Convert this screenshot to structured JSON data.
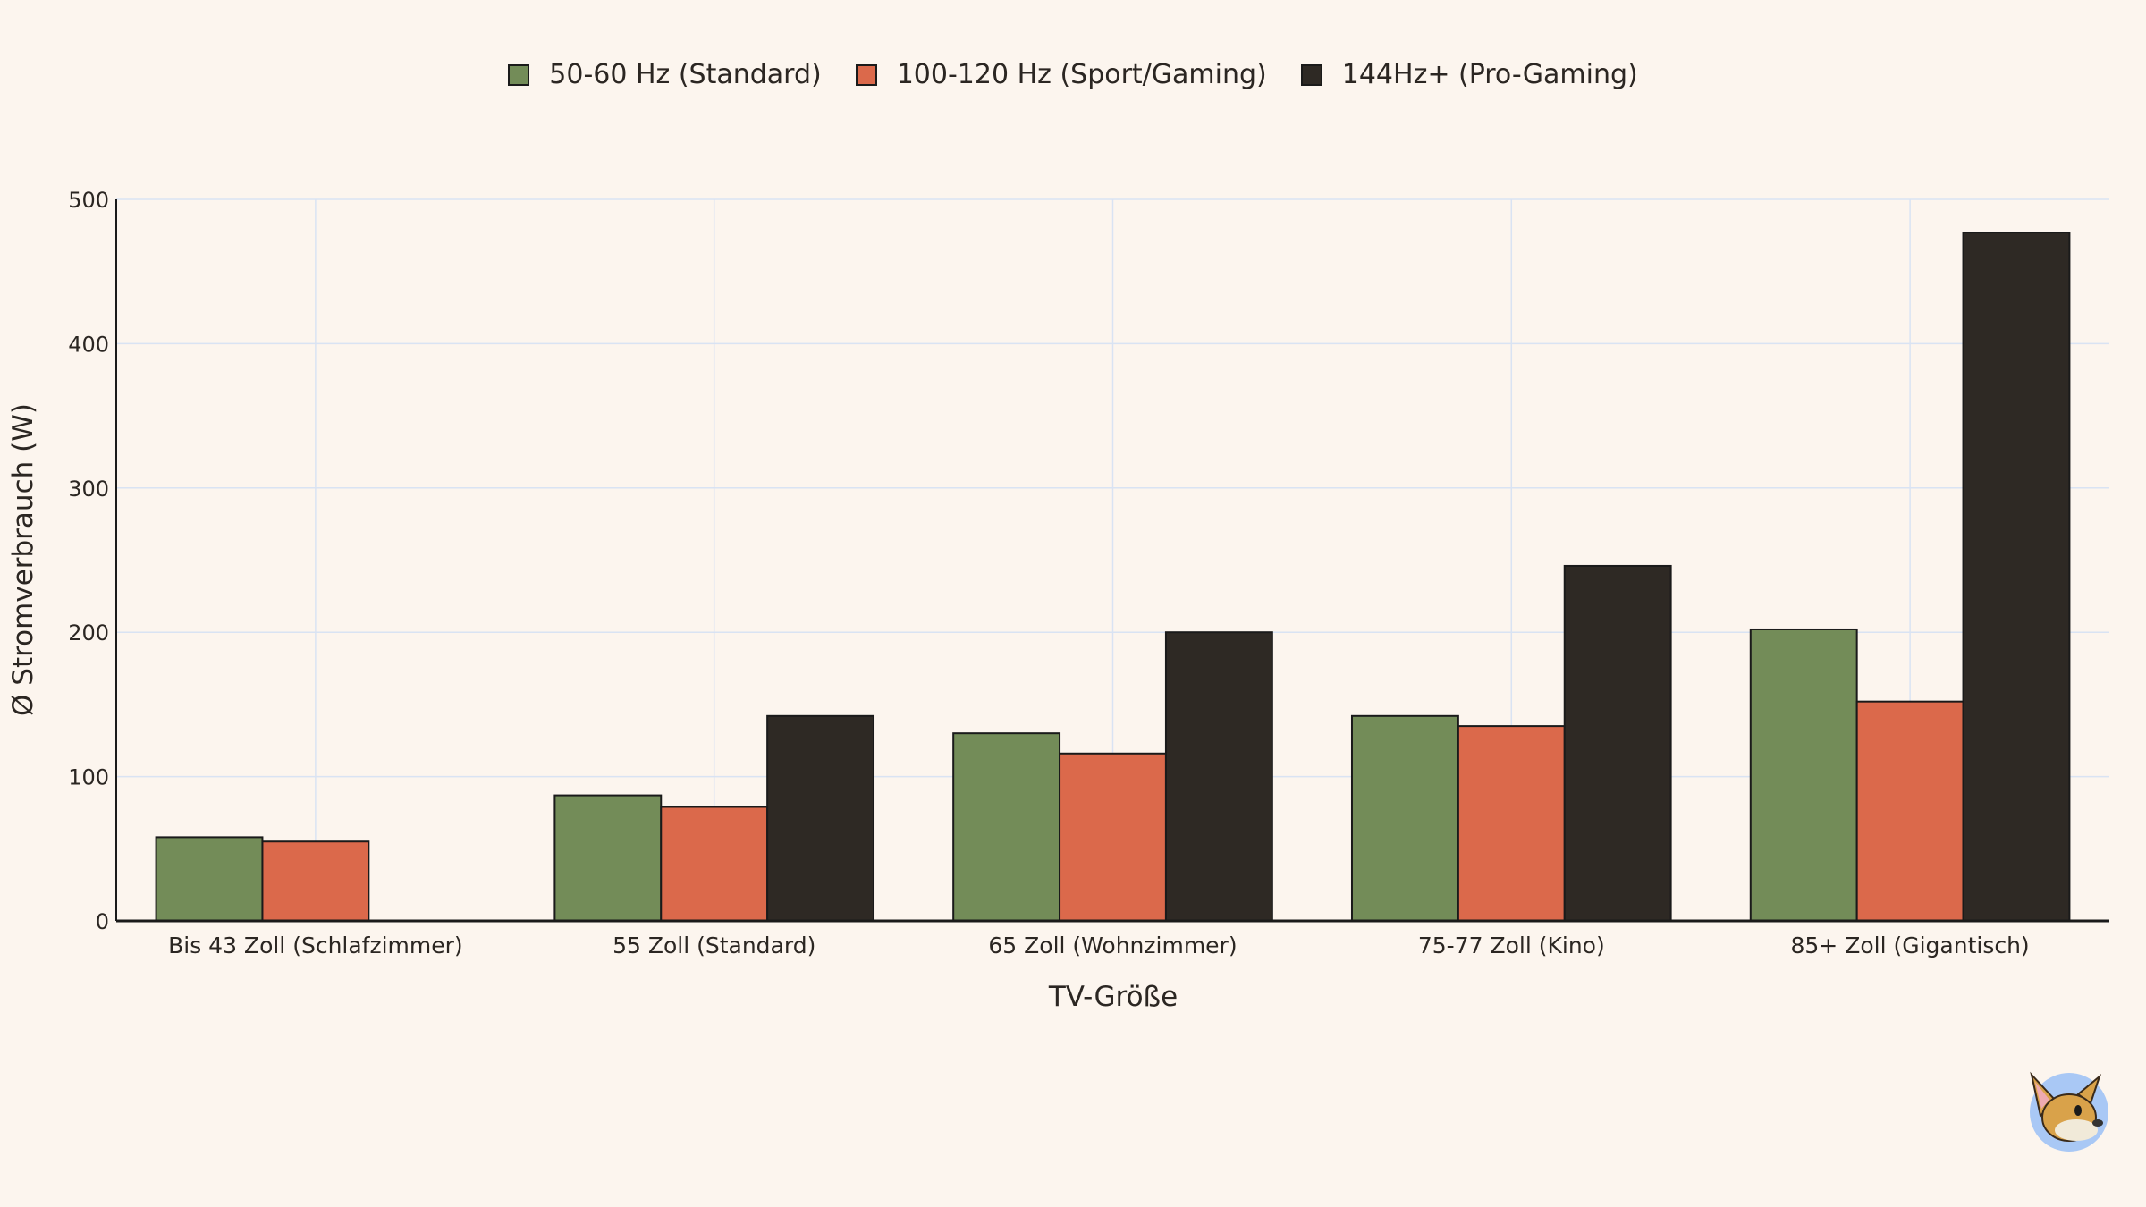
{
  "chart_data": {
    "type": "bar",
    "title": "",
    "xlabel": "TV-Größe",
    "ylabel": "Ø Stromverbrauch (W)",
    "ylim": [
      0,
      500
    ],
    "yticks": [
      "0",
      "100",
      "200",
      "300",
      "400",
      "500"
    ],
    "grid": true,
    "legend_position": "top-center",
    "categories": [
      "Bis 43 Zoll (Schlafzimmer)",
      "55 Zoll (Standard)",
      "65 Zoll (Wohnzimmer)",
      "75-77 Zoll (Kino)",
      "85+ Zoll (Gigantisch)"
    ],
    "series": [
      {
        "name": "50-60 Hz (Standard)",
        "color": "#738c58",
        "values": [
          58,
          87,
          130,
          142,
          202
        ]
      },
      {
        "name": "100-120 Hz (Sport/Gaming)",
        "color": "#db694b",
        "values": [
          55,
          79,
          116,
          135,
          152
        ]
      },
      {
        "name": "144Hz+ (Pro-Gaming)",
        "color": "#2e2924",
        "values": [
          null,
          142,
          200,
          246,
          477
        ]
      }
    ]
  },
  "mascot": {
    "icon": "fox-mascot-logo"
  }
}
